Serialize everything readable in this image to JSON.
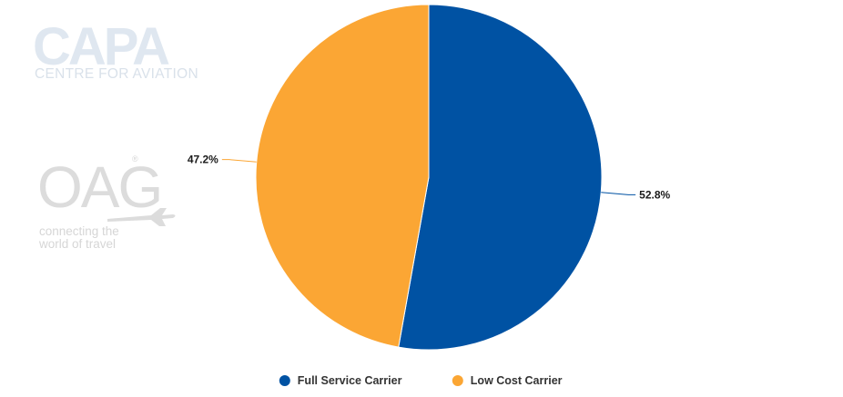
{
  "logos": {
    "capa": {
      "name": "CAPA",
      "tagline": "CENTRE FOR AVIATION"
    },
    "oag": {
      "name": "OAG",
      "tagline_line1": "connecting the",
      "tagline_line2": "world of travel",
      "mark": "®"
    }
  },
  "chart_data": {
    "type": "pie",
    "categories": [
      "Full Service Carrier",
      "Low Cost Carrier"
    ],
    "values": [
      52.8,
      47.2
    ],
    "data_labels": [
      "52.8%",
      "47.2%"
    ],
    "colors": [
      "#0052a3",
      "#fba634"
    ],
    "legend_position": "bottom-center",
    "start_angle_deg": 0,
    "direction": "clockwise"
  }
}
